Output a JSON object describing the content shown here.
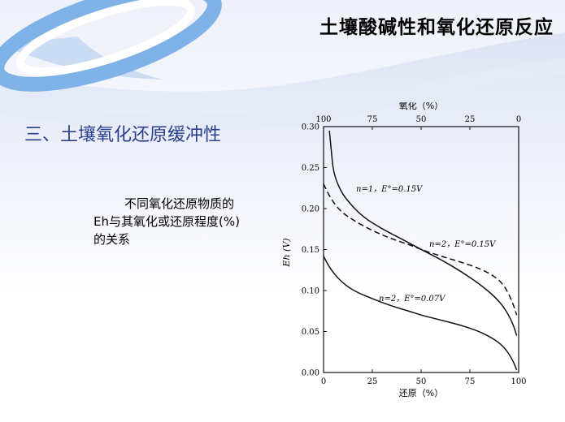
{
  "slide": {
    "title": "土壤酸碱性和氧化还原反应",
    "section_heading": "三、土壤氧化还原缓冲性",
    "description": "不同氧化还原物质的Eh与其氧化或还原程度(%)的关系"
  },
  "chart_data": {
    "type": "line",
    "xlabel_bottom": "还原（%）",
    "xlabel_top": "氧化（%）",
    "ylabel": "Eh (V)",
    "xlim": [
      0,
      100
    ],
    "ylim": [
      0,
      0.3
    ],
    "x_ticks_bottom": [
      "0",
      "25",
      "50",
      "75",
      "100"
    ],
    "x_ticks_top": [
      "100",
      "75",
      "50",
      "25",
      "0"
    ],
    "y_ticks": [
      "0.00",
      "0.05",
      "0.10",
      "0.15",
      "0.20",
      "0.25",
      "0.30"
    ],
    "series": [
      {
        "name": "n=1，E°=0.15V",
        "style": "solid",
        "points": [
          [
            3,
            0.295
          ],
          [
            4,
            0.27
          ],
          [
            5,
            0.245
          ],
          [
            8,
            0.225
          ],
          [
            12,
            0.21
          ],
          [
            20,
            0.19
          ],
          [
            30,
            0.175
          ],
          [
            40,
            0.163
          ],
          [
            50,
            0.15
          ],
          [
            60,
            0.138
          ],
          [
            70,
            0.124
          ],
          [
            80,
            0.108
          ],
          [
            88,
            0.092
          ],
          [
            93,
            0.078
          ],
          [
            97,
            0.06
          ],
          [
            99,
            0.045
          ]
        ]
      },
      {
        "name": "n=2，E°=0.15V",
        "style": "dashed",
        "points": [
          [
            0,
            0.23
          ],
          [
            3,
            0.215
          ],
          [
            8,
            0.198
          ],
          [
            15,
            0.186
          ],
          [
            25,
            0.173
          ],
          [
            35,
            0.163
          ],
          [
            45,
            0.155
          ],
          [
            50,
            0.15
          ],
          [
            60,
            0.142
          ],
          [
            70,
            0.135
          ],
          [
            80,
            0.127
          ],
          [
            88,
            0.117
          ],
          [
            93,
            0.105
          ],
          [
            97,
            0.085
          ],
          [
            99,
            0.07
          ]
        ]
      },
      {
        "name": "n=2，E°=0.07V",
        "style": "solid",
        "points": [
          [
            0,
            0.142
          ],
          [
            3,
            0.128
          ],
          [
            8,
            0.113
          ],
          [
            15,
            0.1
          ],
          [
            25,
            0.09
          ],
          [
            35,
            0.081
          ],
          [
            45,
            0.074
          ],
          [
            50,
            0.07
          ],
          [
            60,
            0.064
          ],
          [
            70,
            0.058
          ],
          [
            80,
            0.05
          ],
          [
            88,
            0.04
          ],
          [
            93,
            0.03
          ],
          [
            97,
            0.015
          ],
          [
            99,
            0.003
          ]
        ]
      }
    ]
  }
}
